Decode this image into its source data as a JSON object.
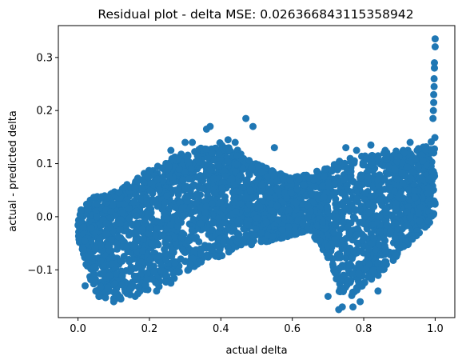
{
  "chart_data": {
    "type": "scatter",
    "title": "Residual plot - delta MSE: 0.026366843115358942",
    "xlabel": "actual delta",
    "ylabel": "actual - predicted delta",
    "xlim": [
      -0.055,
      1.055
    ],
    "ylim": [
      -0.19,
      0.36
    ],
    "x_ticks": [
      0.0,
      0.2,
      0.4,
      0.6,
      0.8,
      1.0
    ],
    "x_tick_labels": [
      "0.0",
      "0.2",
      "0.4",
      "0.6",
      "0.8",
      "1.0"
    ],
    "y_ticks": [
      -0.1,
      0.0,
      0.1,
      0.2,
      0.3
    ],
    "y_tick_labels": [
      "−0.1",
      "0.0",
      "0.1",
      "0.2",
      "0.3"
    ],
    "grid": false,
    "legend": "none",
    "marker_color": "#1f77b4",
    "band_upper": [
      [
        0.0,
        0.012
      ],
      [
        0.05,
        0.04
      ],
      [
        0.1,
        0.05
      ],
      [
        0.15,
        0.065
      ],
      [
        0.2,
        0.09
      ],
      [
        0.25,
        0.105
      ],
      [
        0.3,
        0.125
      ],
      [
        0.35,
        0.13
      ],
      [
        0.4,
        0.14
      ],
      [
        0.45,
        0.125
      ],
      [
        0.5,
        0.1
      ],
      [
        0.55,
        0.085
      ],
      [
        0.6,
        0.075
      ],
      [
        0.65,
        0.08
      ],
      [
        0.7,
        0.095
      ],
      [
        0.75,
        0.11
      ],
      [
        0.8,
        0.115
      ],
      [
        0.85,
        0.12
      ],
      [
        0.9,
        0.125
      ],
      [
        0.95,
        0.13
      ],
      [
        0.98,
        0.135
      ],
      [
        1.0,
        0.16
      ]
    ],
    "band_lower": [
      [
        0.0,
        -0.04
      ],
      [
        0.05,
        -0.15
      ],
      [
        0.1,
        -0.155
      ],
      [
        0.15,
        -0.15
      ],
      [
        0.2,
        -0.14
      ],
      [
        0.25,
        -0.125
      ],
      [
        0.3,
        -0.105
      ],
      [
        0.35,
        -0.085
      ],
      [
        0.4,
        -0.075
      ],
      [
        0.45,
        -0.06
      ],
      [
        0.5,
        -0.05
      ],
      [
        0.55,
        -0.045
      ],
      [
        0.6,
        -0.035
      ],
      [
        0.65,
        -0.025
      ],
      [
        0.7,
        -0.08
      ],
      [
        0.73,
        -0.14
      ],
      [
        0.76,
        -0.155
      ],
      [
        0.8,
        -0.135
      ],
      [
        0.85,
        -0.11
      ],
      [
        0.9,
        -0.07
      ],
      [
        0.95,
        -0.035
      ],
      [
        0.98,
        -0.015
      ],
      [
        1.0,
        0.0
      ]
    ],
    "outlier_points": [
      [
        1.0,
        0.335
      ],
      [
        1.0,
        0.32
      ],
      [
        0.998,
        0.29
      ],
      [
        0.998,
        0.28
      ],
      [
        0.997,
        0.26
      ],
      [
        0.997,
        0.245
      ],
      [
        0.996,
        0.23
      ],
      [
        0.996,
        0.215
      ],
      [
        0.995,
        0.2
      ],
      [
        0.994,
        0.185
      ],
      [
        0.47,
        0.185
      ],
      [
        0.49,
        0.17
      ],
      [
        0.37,
        0.17
      ],
      [
        0.36,
        0.165
      ],
      [
        0.32,
        0.14
      ],
      [
        0.3,
        0.14
      ],
      [
        0.26,
        0.125
      ],
      [
        0.42,
        0.145
      ],
      [
        0.44,
        0.14
      ],
      [
        0.75,
        0.13
      ],
      [
        0.78,
        0.125
      ],
      [
        0.82,
        0.135
      ],
      [
        0.86,
        0.125
      ],
      [
        0.93,
        0.14
      ],
      [
        0.55,
        0.13
      ],
      [
        0.73,
        -0.175
      ],
      [
        0.74,
        -0.17
      ],
      [
        0.77,
        -0.17
      ],
      [
        0.79,
        -0.16
      ],
      [
        0.7,
        -0.15
      ],
      [
        0.84,
        -0.14
      ],
      [
        0.1,
        -0.16
      ],
      [
        0.12,
        -0.155
      ],
      [
        0.16,
        -0.15
      ],
      [
        0.05,
        -0.14
      ],
      [
        0.22,
        -0.14
      ],
      [
        0.02,
        -0.13
      ],
      [
        0.26,
        -0.125
      ]
    ]
  }
}
